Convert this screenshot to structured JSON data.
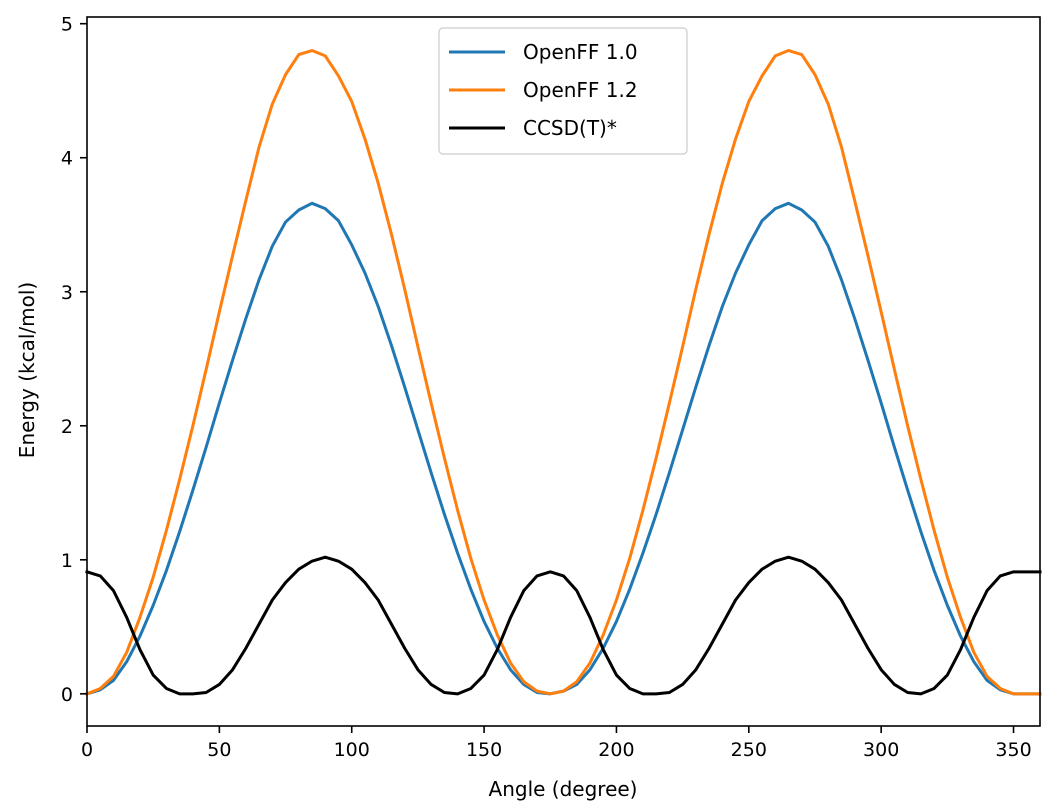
{
  "chart_data": {
    "type": "line",
    "xlabel": "Angle (degree)",
    "ylabel": "Energy (kcal/mol)",
    "xlim": [
      0,
      360
    ],
    "ylim": [
      -0.24,
      5.05
    ],
    "xticks": [
      0,
      50,
      100,
      150,
      200,
      250,
      300,
      350
    ],
    "yticks": [
      0,
      1,
      2,
      3,
      4,
      5
    ],
    "grid": false,
    "legend_position": "top-center",
    "x": [
      0,
      5,
      10,
      15,
      20,
      25,
      30,
      35,
      40,
      45,
      50,
      55,
      60,
      65,
      70,
      75,
      80,
      85,
      90,
      95,
      100,
      105,
      110,
      115,
      120,
      125,
      130,
      135,
      140,
      145,
      150,
      155,
      160,
      165,
      170,
      175,
      180,
      185,
      190,
      195,
      200,
      205,
      210,
      215,
      220,
      225,
      230,
      235,
      240,
      245,
      250,
      255,
      260,
      265,
      270,
      275,
      280,
      285,
      290,
      295,
      300,
      305,
      310,
      315,
      320,
      325,
      330,
      335,
      340,
      345,
      350,
      355,
      360
    ],
    "series": [
      {
        "name": "OpenFF 1.0",
        "color": "#1f77b4",
        "values": [
          0.0,
          0.03,
          0.1,
          0.24,
          0.43,
          0.66,
          0.92,
          1.21,
          1.52,
          1.84,
          2.17,
          2.49,
          2.8,
          3.09,
          3.34,
          3.52,
          3.61,
          3.66,
          3.62,
          3.53,
          3.35,
          3.14,
          2.89,
          2.6,
          2.29,
          1.97,
          1.65,
          1.34,
          1.05,
          0.78,
          0.54,
          0.34,
          0.18,
          0.07,
          0.01,
          0.0,
          0.02,
          0.07,
          0.18,
          0.34,
          0.54,
          0.78,
          1.05,
          1.34,
          1.65,
          1.97,
          2.29,
          2.6,
          2.89,
          3.14,
          3.35,
          3.53,
          3.62,
          3.66,
          3.61,
          3.52,
          3.34,
          3.09,
          2.8,
          2.49,
          2.17,
          1.84,
          1.52,
          1.21,
          0.92,
          0.66,
          0.43,
          0.24,
          0.1,
          0.03,
          0.0,
          0.0,
          0.0
        ]
      },
      {
        "name": "OpenFF 1.2",
        "color": "#ff7f0e",
        "values": [
          0.0,
          0.04,
          0.13,
          0.31,
          0.57,
          0.87,
          1.22,
          1.6,
          2.0,
          2.42,
          2.85,
          3.27,
          3.68,
          4.08,
          4.4,
          4.62,
          4.77,
          4.8,
          4.76,
          4.61,
          4.42,
          4.14,
          3.81,
          3.43,
          3.02,
          2.59,
          2.17,
          1.76,
          1.37,
          1.01,
          0.7,
          0.44,
          0.23,
          0.09,
          0.02,
          0.0,
          0.02,
          0.09,
          0.23,
          0.44,
          0.7,
          1.01,
          1.37,
          1.76,
          2.17,
          2.59,
          3.02,
          3.43,
          3.81,
          4.14,
          4.42,
          4.61,
          4.76,
          4.8,
          4.77,
          4.62,
          4.4,
          4.08,
          3.68,
          3.27,
          2.85,
          2.42,
          2.0,
          1.6,
          1.22,
          0.87,
          0.57,
          0.31,
          0.13,
          0.04,
          0.0,
          0.0,
          0.0
        ]
      },
      {
        "name": "CCSD(T)*",
        "color": "#000000",
        "values": [
          0.91,
          0.88,
          0.77,
          0.57,
          0.33,
          0.14,
          0.04,
          0.0,
          0.0,
          0.01,
          0.07,
          0.18,
          0.34,
          0.52,
          0.7,
          0.83,
          0.93,
          0.99,
          1.02,
          0.99,
          0.93,
          0.83,
          0.7,
          0.52,
          0.34,
          0.18,
          0.07,
          0.01,
          0.0,
          0.04,
          0.14,
          0.33,
          0.57,
          0.77,
          0.88,
          0.91,
          0.88,
          0.77,
          0.57,
          0.33,
          0.14,
          0.04,
          0.0,
          0.0,
          0.01,
          0.07,
          0.18,
          0.34,
          0.52,
          0.7,
          0.83,
          0.93,
          0.99,
          1.02,
          0.99,
          0.93,
          0.83,
          0.7,
          0.52,
          0.34,
          0.18,
          0.07,
          0.01,
          0.0,
          0.04,
          0.14,
          0.33,
          0.57,
          0.77,
          0.88,
          0.91,
          0.91,
          0.91
        ]
      }
    ]
  }
}
